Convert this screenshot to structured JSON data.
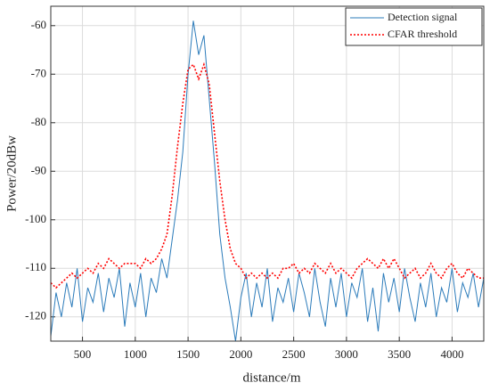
{
  "chart_data": {
    "type": "line",
    "xlabel": "distance/m",
    "ylabel": "Power/20dBw",
    "x": [
      200,
      250,
      300,
      350,
      400,
      450,
      500,
      550,
      600,
      650,
      700,
      750,
      800,
      850,
      900,
      950,
      1000,
      1050,
      1100,
      1150,
      1200,
      1250,
      1300,
      1350,
      1400,
      1450,
      1500,
      1550,
      1600,
      1650,
      1700,
      1750,
      1800,
      1850,
      1900,
      1950,
      2000,
      2050,
      2100,
      2150,
      2200,
      2250,
      2300,
      2350,
      2400,
      2450,
      2500,
      2550,
      2600,
      2650,
      2700,
      2750,
      2800,
      2850,
      2900,
      2950,
      3000,
      3050,
      3100,
      3150,
      3200,
      3250,
      3300,
      3350,
      3400,
      3450,
      3500,
      3550,
      3600,
      3650,
      3700,
      3750,
      3800,
      3850,
      3900,
      3950,
      4000,
      4050,
      4100,
      4150,
      4200,
      4250,
      4300
    ],
    "series": [
      {
        "name": "Detection signal",
        "color": "#2b7bba",
        "linestyle": "solid",
        "values": [
          -124,
          -115,
          -120,
          -113,
          -118,
          -110,
          -121,
          -114,
          -117,
          -111,
          -119,
          -112,
          -116,
          -110,
          -122,
          -113,
          -118,
          -111,
          -120,
          -112,
          -115,
          -108,
          -112,
          -104,
          -96,
          -86,
          -70,
          -59,
          -66,
          -62,
          -75,
          -88,
          -103,
          -112,
          -118,
          -125,
          -116,
          -111,
          -120,
          -113,
          -118,
          -110,
          -121,
          -114,
          -117,
          -112,
          -119,
          -111,
          -115,
          -120,
          -110,
          -117,
          -122,
          -112,
          -118,
          -111,
          -120,
          -113,
          -116,
          -110,
          -121,
          -114,
          -123,
          -111,
          -117,
          -112,
          -119,
          -110,
          -116,
          -121,
          -113,
          -118,
          -111,
          -120,
          -114,
          -117,
          -110,
          -119,
          -113,
          -116,
          -111,
          -118,
          -112
        ]
      },
      {
        "name": "CFAR threshold",
        "color": "#ff0000",
        "linestyle": "dotted",
        "values": [
          -113,
          -114,
          -113,
          -112,
          -111,
          -112,
          -111,
          -110,
          -111,
          -109,
          -110,
          -108,
          -109,
          -110,
          -109,
          -109,
          -109,
          -110,
          -108,
          -109,
          -108,
          -106,
          -103,
          -95,
          -85,
          -76,
          -69,
          -68,
          -71,
          -68,
          -72,
          -82,
          -92,
          -100,
          -106,
          -109,
          -110,
          -112,
          -111,
          -112,
          -111,
          -112,
          -111,
          -112,
          -110,
          -110,
          -109,
          -111,
          -110,
          -111,
          -109,
          -110,
          -111,
          -109,
          -111,
          -110,
          -111,
          -112,
          -110,
          -109,
          -108,
          -109,
          -110,
          -108,
          -110,
          -108,
          -110,
          -112,
          -111,
          -110,
          -112,
          -111,
          -109,
          -111,
          -112,
          -110,
          -109,
          -111,
          -112,
          -110,
          -111,
          -112,
          -112
        ]
      }
    ],
    "xlim": [
      200,
      4300
    ],
    "xticks": [
      500,
      1000,
      1500,
      2000,
      2500,
      3000,
      3500,
      4000
    ],
    "ylim": [
      -125,
      -56
    ],
    "yticks": [
      -120,
      -110,
      -100,
      -90,
      -80,
      -70,
      -60
    ],
    "grid": true,
    "legend": "top-right"
  }
}
